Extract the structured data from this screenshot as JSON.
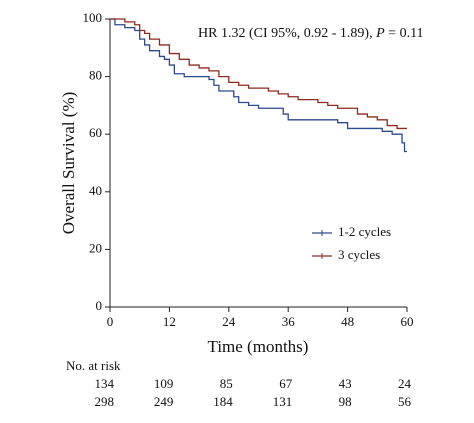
{
  "chart_data": {
    "type": "line",
    "step": true,
    "annotation": {
      "prefix": "HR 1.32 (CI 95%, 0.92 - 1.89), ",
      "p_label": "P",
      "suffix": " = 0.11"
    },
    "x_label": "Time (months)",
    "y_label": "Overall Survival (%)",
    "xlim": [
      0,
      60
    ],
    "xticks": [
      0,
      12,
      24,
      36,
      48,
      60
    ],
    "ylim": [
      0,
      100
    ],
    "yticks": [
      0,
      20,
      40,
      60,
      80,
      100
    ],
    "legend": "lower right",
    "series": [
      {
        "name": "1-2 cycles",
        "color": "#2b4a8e",
        "x": [
          0,
          1,
          3,
          5,
          6,
          7,
          8,
          10,
          11,
          12,
          13,
          15,
          20,
          21,
          22,
          25,
          26,
          28,
          30,
          35,
          36,
          46,
          48,
          55,
          57,
          59,
          59.5,
          60
        ],
        "values": [
          100,
          98,
          97,
          96,
          93,
          91,
          89,
          87,
          86,
          84,
          81,
          80,
          79,
          77,
          75,
          73,
          71,
          70,
          69,
          67,
          65,
          64,
          62,
          61,
          60,
          57,
          54,
          54
        ]
      },
      {
        "name": "3 cycles",
        "color": "#8e2a1c",
        "x": [
          0,
          3,
          5,
          6,
          7,
          8,
          10,
          12,
          14,
          16,
          18,
          20,
          22,
          24,
          26,
          28,
          32,
          34,
          36,
          38,
          42,
          44,
          46,
          50,
          52,
          54,
          56,
          58,
          60
        ],
        "values": [
          100,
          99,
          98,
          96,
          95,
          93,
          91,
          88,
          86,
          84,
          83,
          82,
          80,
          78,
          77,
          76,
          75,
          74,
          73,
          72,
          71,
          70,
          69,
          67,
          66,
          65,
          63,
          62,
          62
        ]
      }
    ],
    "risk_table": {
      "title": "No. at risk",
      "rows": [
        [
          134,
          109,
          85,
          67,
          43,
          24
        ],
        [
          298,
          249,
          184,
          131,
          98,
          56
        ]
      ]
    }
  }
}
